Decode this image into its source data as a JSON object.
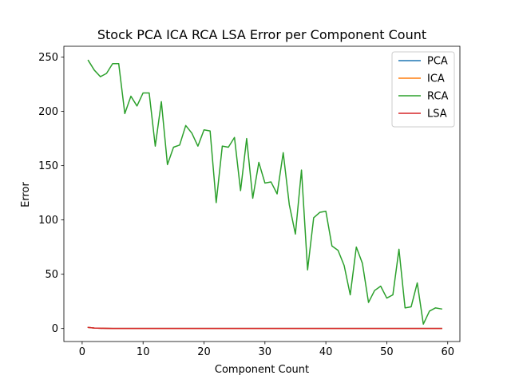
{
  "chart_data": {
    "type": "line",
    "title": "Stock PCA ICA RCA LSA Error per Component Count",
    "xlabel": "Component Count",
    "ylabel": "Error",
    "xlim": [
      -3,
      62
    ],
    "ylim": [
      -12,
      260
    ],
    "xticks": [
      0,
      10,
      20,
      30,
      40,
      50,
      60
    ],
    "yticks": [
      0,
      50,
      100,
      150,
      200,
      250
    ],
    "grid": false,
    "legend": "top-right",
    "x": [
      1,
      2,
      3,
      4,
      5,
      6,
      7,
      8,
      9,
      10,
      11,
      12,
      13,
      14,
      15,
      16,
      17,
      18,
      19,
      20,
      21,
      22,
      23,
      24,
      25,
      26,
      27,
      28,
      29,
      30,
      31,
      32,
      33,
      34,
      35,
      36,
      37,
      38,
      39,
      40,
      41,
      42,
      43,
      44,
      45,
      46,
      47,
      48,
      49,
      50,
      51,
      52,
      53,
      54,
      55,
      56,
      57,
      58,
      59
    ],
    "series": [
      {
        "name": "PCA",
        "color": "#1f77b4",
        "values": [
          1.0,
          0.4,
          0.2,
          0.1,
          0.05,
          0.03,
          0.02,
          0.01,
          0,
          0,
          0,
          0,
          0,
          0,
          0,
          0,
          0,
          0,
          0,
          0,
          0,
          0,
          0,
          0,
          0,
          0,
          0,
          0,
          0,
          0,
          0,
          0,
          0,
          0,
          0,
          0,
          0,
          0,
          0,
          0,
          0,
          0,
          0,
          0,
          0,
          0,
          0,
          0,
          0,
          0,
          0,
          0,
          0,
          0,
          0,
          0,
          0,
          0,
          0
        ]
      },
      {
        "name": "ICA",
        "color": "#ff7f0e",
        "values": [
          1.0,
          0.4,
          0.2,
          0.1,
          0.05,
          0.03,
          0.02,
          0.01,
          0,
          0,
          0,
          0,
          0,
          0,
          0,
          0,
          0,
          0,
          0,
          0,
          0,
          0,
          0,
          0,
          0,
          0,
          0,
          0,
          0,
          0,
          0,
          0,
          0,
          0,
          0,
          0,
          0,
          0,
          0,
          0,
          0,
          0,
          0,
          0,
          0,
          0,
          0,
          0,
          0,
          0,
          0,
          0,
          0,
          0,
          0,
          0,
          0,
          0,
          0
        ]
      },
      {
        "name": "RCA",
        "color": "#2ca02c",
        "values": [
          247,
          238,
          232,
          235,
          244,
          244,
          198,
          214,
          205,
          217,
          217,
          168,
          209,
          151,
          167,
          169,
          187,
          180,
          168,
          183,
          182,
          116,
          168,
          167,
          176,
          127,
          175,
          120,
          153,
          134,
          135,
          124,
          162,
          114,
          87,
          146,
          54,
          102,
          107,
          108,
          76,
          72,
          58,
          31,
          75,
          60,
          24,
          35,
          39,
          28,
          31,
          73,
          19,
          20,
          42,
          4,
          16,
          19,
          18
        ]
      },
      {
        "name": "LSA",
        "color": "#d62728",
        "values": [
          1.0,
          0.4,
          0.2,
          0.1,
          0.05,
          0.03,
          0.02,
          0.01,
          0,
          0,
          0,
          0,
          0,
          0,
          0,
          0,
          0,
          0,
          0,
          0,
          0,
          0,
          0,
          0,
          0,
          0,
          0,
          0,
          0,
          0,
          0,
          0,
          0,
          0,
          0,
          0,
          0,
          0,
          0,
          0,
          0,
          0,
          0,
          0,
          0,
          0,
          0,
          0,
          0,
          0,
          0,
          0,
          0,
          0,
          0,
          0,
          0,
          0,
          0
        ]
      }
    ]
  }
}
